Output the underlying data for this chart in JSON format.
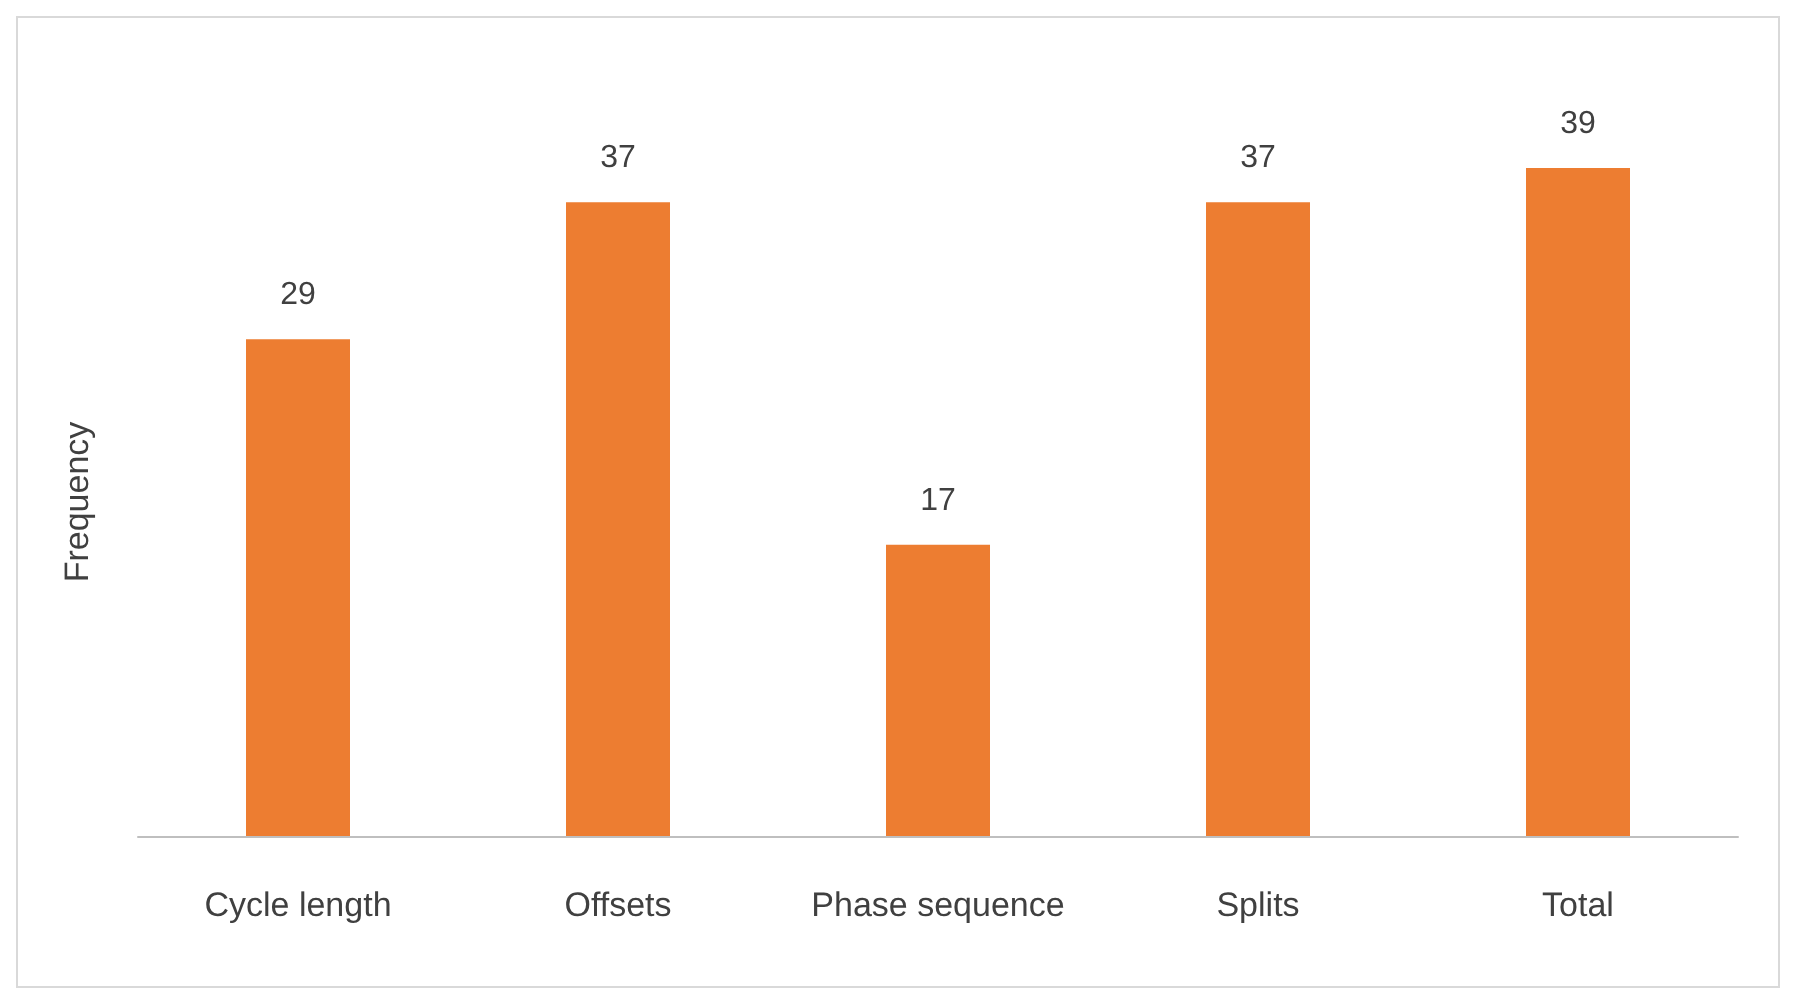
{
  "chart_data": {
    "type": "bar",
    "ylabel": "Frequency",
    "categories": [
      "Cycle length",
      "Offsets",
      "Phase sequence",
      "Splits",
      "Total"
    ],
    "values": [
      29,
      37,
      17,
      37,
      39
    ],
    "color": "#ed7d31",
    "data_labels": true
  }
}
